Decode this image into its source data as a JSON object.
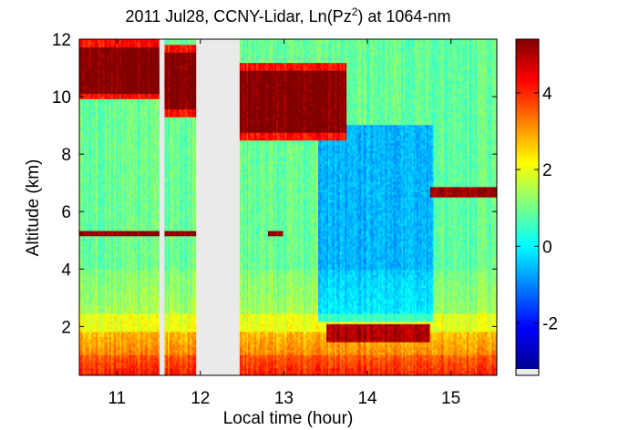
{
  "chart_data": {
    "type": "heatmap",
    "title": {
      "prefix": "2011 Jul28, CCNY-Lidar, Ln(Pz",
      "superscript": "2",
      "suffix": ") at 1064-nm"
    },
    "xlabel": "Local time (hour)",
    "ylabel": "Altitude (km)",
    "xlim": [
      10.55,
      15.55
    ],
    "ylim": [
      0.3,
      12
    ],
    "xticks": [
      11,
      12,
      13,
      14,
      15
    ],
    "yticks": [
      2,
      4,
      6,
      8,
      10,
      12
    ],
    "colorbar": {
      "range": [
        -3.2,
        5.4
      ],
      "ticks": [
        -2,
        0,
        2,
        4
      ],
      "colormap": "jet",
      "nodata_color": "#eaeaea"
    },
    "data_gaps": [
      [
        11.52,
        11.58
      ],
      [
        11.95,
        12.47
      ]
    ],
    "features": {
      "cirrus": [
        {
          "x0": 10.55,
          "x1": 11.52,
          "top": 12.0,
          "base": 9.9
        },
        {
          "x0": 11.58,
          "x1": 11.95,
          "top": 11.8,
          "base": 9.3
        },
        {
          "x0": 12.47,
          "x1": 13.75,
          "top": 11.2,
          "base": 8.5
        }
      ],
      "aerosol_layer": {
        "x0": 14.75,
        "x1": 15.55,
        "top": 6.9,
        "base": 6.5
      },
      "thin_layer_altitude": 5.25,
      "pbl_top_altitude": 1.8
    }
  }
}
